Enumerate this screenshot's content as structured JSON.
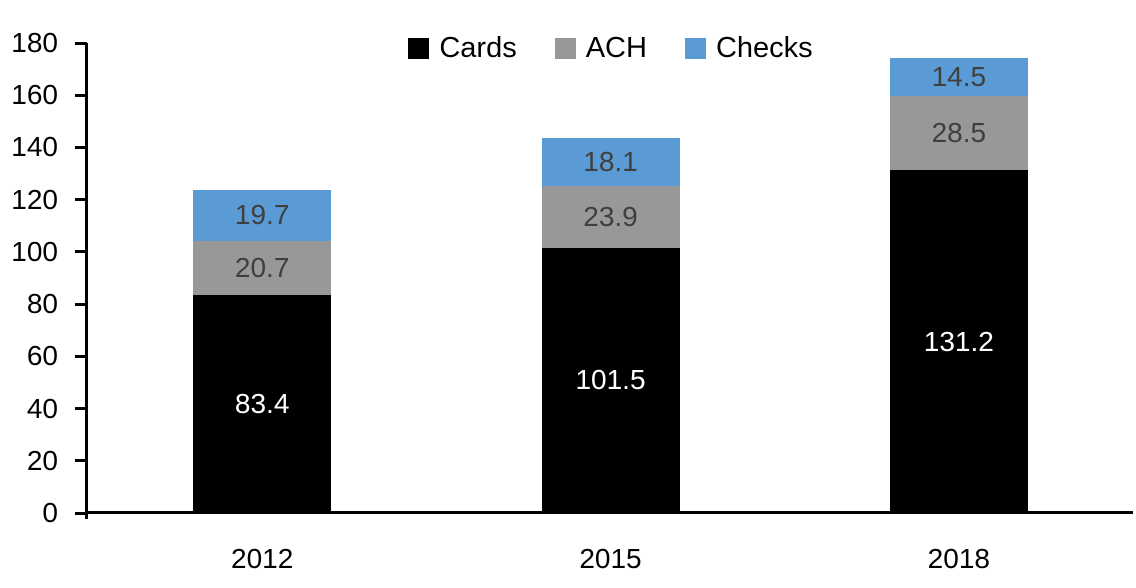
{
  "chart_data": {
    "type": "bar",
    "stacked": true,
    "title": "",
    "xlabel": "",
    "ylabel": "",
    "categories": [
      "2012",
      "2015",
      "2018"
    ],
    "series": [
      {
        "name": "Cards",
        "color": "#000000",
        "label_color": "#ffffff",
        "values": [
          83.4,
          101.5,
          131.2
        ]
      },
      {
        "name": "ACH",
        "color": "#989898",
        "label_color": "#3f3f3f",
        "values": [
          20.7,
          23.9,
          28.5
        ]
      },
      {
        "name": "Checks",
        "color": "#5b9bd5",
        "label_color": "#3f3f3f",
        "values": [
          19.7,
          18.1,
          14.5
        ]
      }
    ],
    "totals": [
      123.8,
      143.5,
      174.2
    ],
    "ylim": [
      0,
      180
    ],
    "ytick_step": 20,
    "ytick_labels": [
      "0",
      "20",
      "40",
      "60",
      "80",
      "100",
      "120",
      "140",
      "160",
      "180"
    ],
    "grid": false,
    "data_labels": true,
    "legend": {
      "position": "top",
      "entries": [
        "Cards",
        "ACH",
        "Checks"
      ]
    },
    "axis_color": "#000000"
  }
}
